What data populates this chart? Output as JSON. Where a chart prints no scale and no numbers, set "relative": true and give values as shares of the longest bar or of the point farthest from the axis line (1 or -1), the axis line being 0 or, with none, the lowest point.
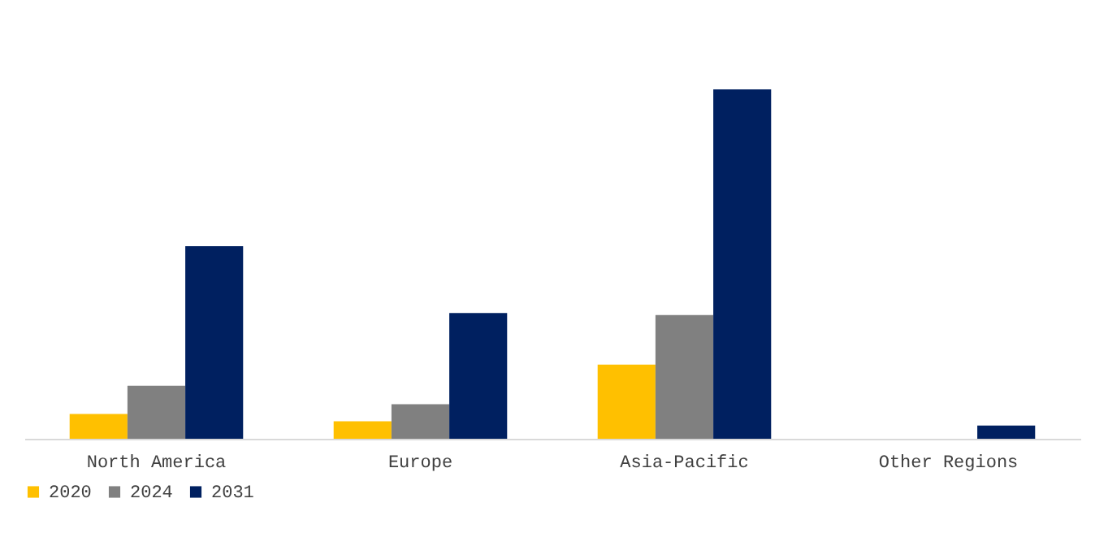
{
  "chart_data": {
    "type": "bar",
    "relative": true,
    "categories": [
      "North America",
      "Europe",
      "Asia-Pacific",
      "Other Regions"
    ],
    "series": [
      {
        "name": "2020",
        "color": "#ffc000",
        "values": [
          0.071,
          0.05,
          0.212,
          0
        ]
      },
      {
        "name": "2024",
        "color": "#808080",
        "values": [
          0.152,
          0.099,
          0.354,
          0
        ]
      },
      {
        "name": "2031",
        "color": "#002060",
        "values": [
          0.551,
          0.36,
          1,
          0.038
        ]
      }
    ],
    "legend": "bottom"
  }
}
